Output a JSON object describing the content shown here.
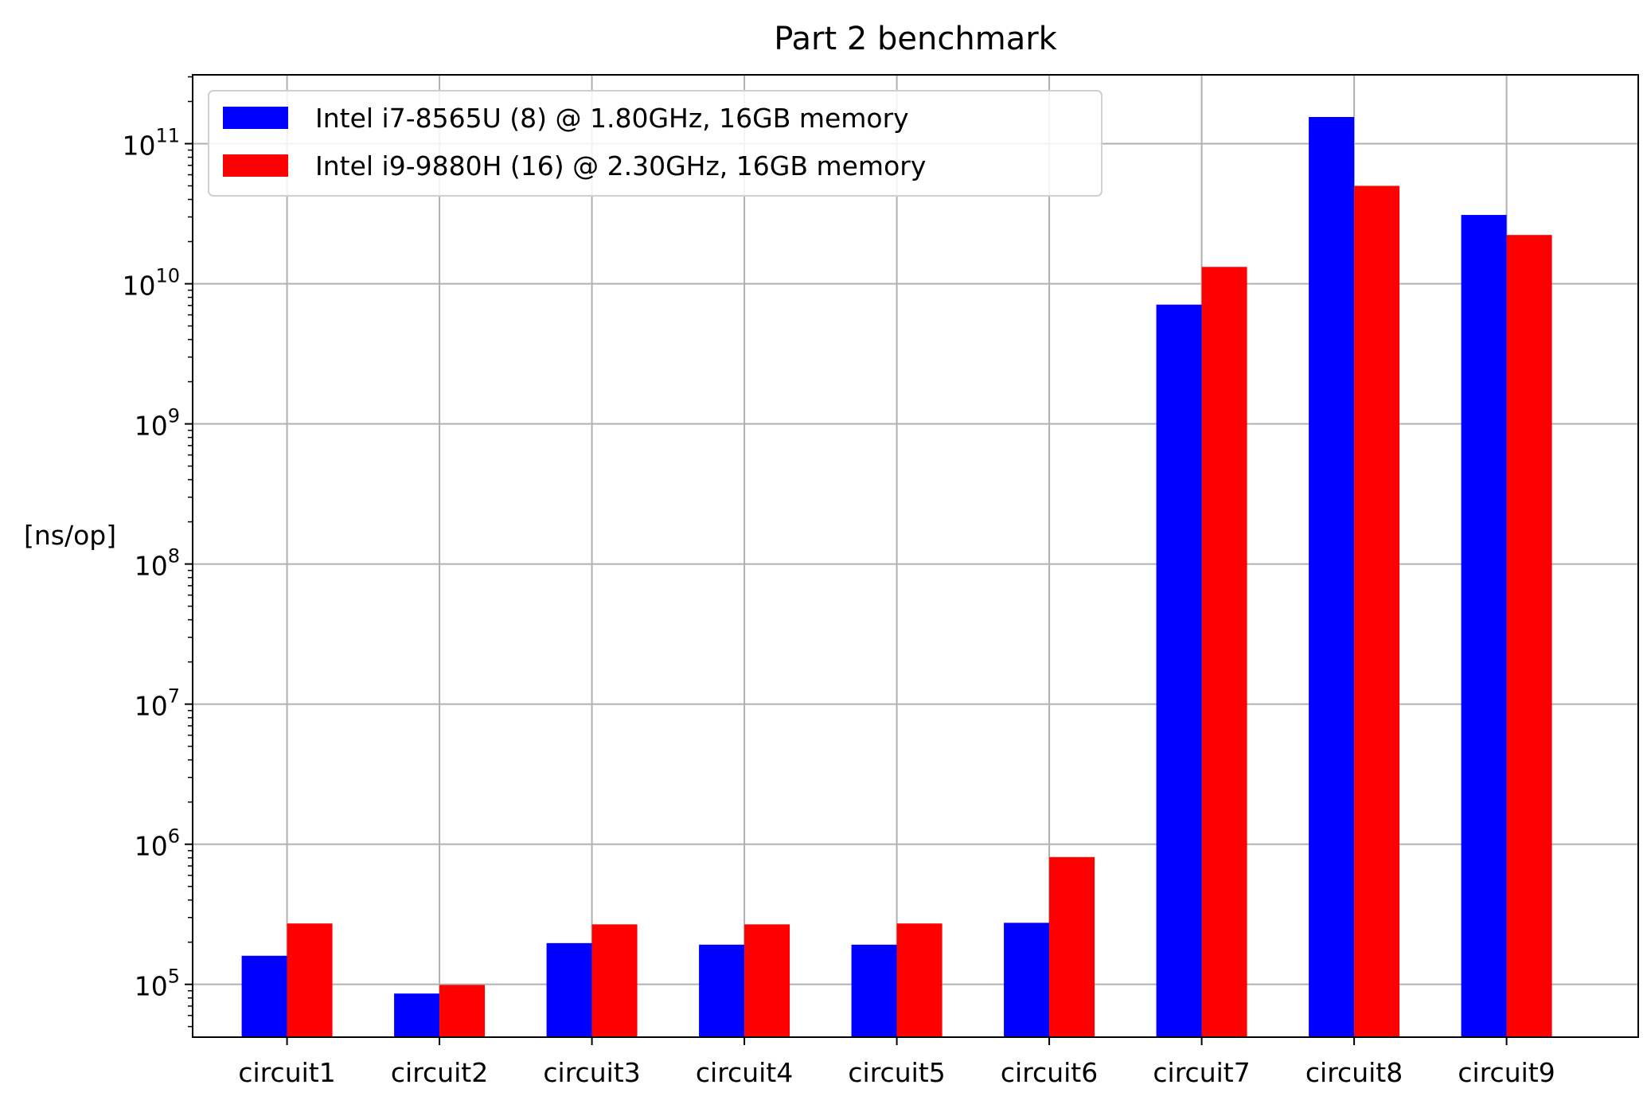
{
  "chart_data": {
    "type": "bar",
    "title": "Part 2 benchmark",
    "ylabel": "[ns/op]",
    "xlabel": "",
    "yscale": "log",
    "ylim": [
      42000,
      310000000000
    ],
    "grid": true,
    "legend_position": "top-left",
    "categories": [
      "circuit1",
      "circuit2",
      "circuit3",
      "circuit4",
      "circuit5",
      "circuit6",
      "circuit7",
      "circuit8",
      "circuit9"
    ],
    "series": [
      {
        "name": "Intel i7-8565U (8) @ 1.80GHz, 16GB memory",
        "color": "#0000ff",
        "values": [
          160000,
          86000,
          197000,
          192000,
          192000,
          275000,
          7100000000,
          155000000000,
          31000000000
        ]
      },
      {
        "name": "Intel i9-9880H (16) @ 2.30GHz, 16GB memory",
        "color": "#ff0000",
        "values": [
          272000,
          99000,
          268000,
          268000,
          272000,
          810000,
          13200000000,
          50000000000,
          22300000000
        ]
      }
    ],
    "y_ticks": [
      {
        "value": 100000,
        "base": "10",
        "exp": "5"
      },
      {
        "value": 1000000,
        "base": "10",
        "exp": "6"
      },
      {
        "value": 10000000,
        "base": "10",
        "exp": "7"
      },
      {
        "value": 100000000,
        "base": "10",
        "exp": "8"
      },
      {
        "value": 1000000000,
        "base": "10",
        "exp": "9"
      },
      {
        "value": 10000000000,
        "base": "10",
        "exp": "10"
      },
      {
        "value": 100000000000,
        "base": "10",
        "exp": "11"
      }
    ]
  }
}
